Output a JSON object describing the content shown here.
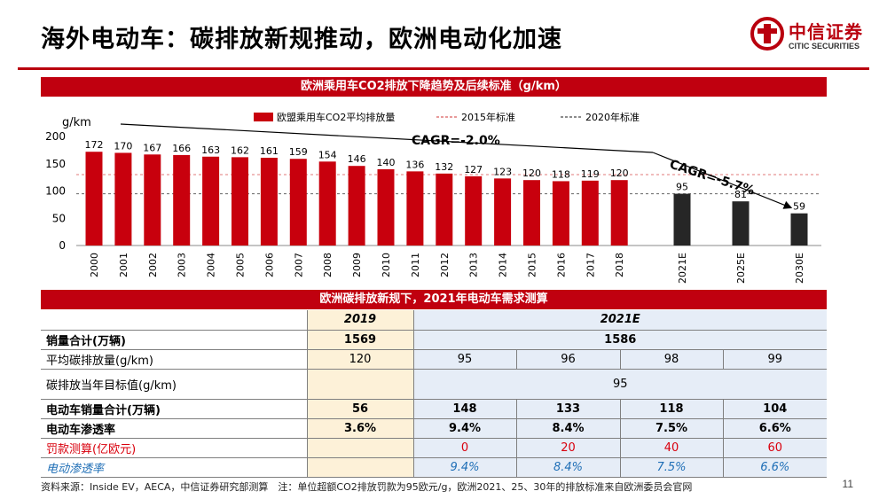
{
  "slide": {
    "title": "海外电动车：碳排放新规推动，欧洲电动化加速",
    "page_number": "11",
    "source_note": "资料来源：Inside EV，AECA，中信证券研究部测算　注：单位超额CO2排放罚款为95欧元/g，欧洲2021、25、30年的排放标准来自欧洲委员会官网"
  },
  "logo": {
    "cn": "中信证券",
    "en": "CITIC SECURITIES",
    "color": "#b9000e"
  },
  "colors": {
    "brand_red": "#c0000f",
    "bar_red": "#c8000d",
    "bar_black": "#262626",
    "highlight_2019": "#fdf1d8",
    "highlight_2021": "#e6edf7",
    "penalty_red": "#d9000d",
    "penetration_blue": "#1e6eb6"
  },
  "chart_data": {
    "type": "bar",
    "title": "欧洲乘用车CO2排放下降趋势及后续标准（g/km）",
    "ylabel": "g/km",
    "ylim": [
      0,
      200
    ],
    "yticks": [
      0,
      50,
      100,
      150,
      200
    ],
    "categories": [
      "2000",
      "2001",
      "2002",
      "2003",
      "2004",
      "2005",
      "2006",
      "2007",
      "2008",
      "2009",
      "2010",
      "2011",
      "2012",
      "2013",
      "2014",
      "2015",
      "2016",
      "2017",
      "2018",
      "2021E",
      "2025E",
      "2030E"
    ],
    "series": [
      {
        "name": "欧盟乘用车CO2平均排放量",
        "values": [
          172,
          170,
          167,
          166,
          163,
          162,
          161,
          159,
          154,
          146,
          140,
          136,
          132,
          127,
          123,
          120,
          118,
          119,
          120,
          95,
          81,
          59
        ],
        "color": "#c8000d"
      }
    ],
    "forecast_categories": [
      "2021E",
      "2025E",
      "2030E"
    ],
    "forecast_color": "#262626",
    "reference_lines": [
      {
        "name": "2015年标准",
        "value": 130,
        "color": "#e07a7a"
      },
      {
        "name": "2020年标准",
        "value": 95,
        "color": "#666666"
      }
    ],
    "annotations": [
      {
        "text": "CAGR=-2.0%",
        "from": "2000",
        "to": "2018"
      },
      {
        "text": "CAGR=-5.7%",
        "from": "2018",
        "to": "2030E"
      }
    ],
    "legend": "top"
  },
  "table": {
    "title": "欧洲碳排放新规下，2021年电动车需求测算",
    "header": {
      "label": "",
      "y2019": "2019",
      "y2021": "2021E"
    },
    "rows": {
      "sales": {
        "label": "销量合计(万辆)",
        "y2019": "1569",
        "y2021": "1586"
      },
      "avg": {
        "label": "平均碳排放量(g/km)",
        "y2019": "120",
        "v": [
          "95",
          "96",
          "98",
          "99"
        ]
      },
      "target": {
        "label": "碳排放当年目标值(g/km)",
        "y2019": "",
        "y2021": "95"
      },
      "ev_sales": {
        "label": "电动车销量合计(万辆)",
        "y2019": "56",
        "v": [
          "148",
          "133",
          "118",
          "104"
        ]
      },
      "penetration": {
        "label": "电动车渗透率",
        "y2019": "3.6%",
        "v": [
          "9.4%",
          "8.4%",
          "7.5%",
          "6.6%"
        ]
      },
      "penalty": {
        "label": "罚款测算(亿欧元)",
        "y2019": "",
        "v": [
          "0",
          "20",
          "40",
          "60"
        ]
      },
      "ev_rate": {
        "label": "电动渗透率",
        "y2019": "",
        "v": [
          "9.4%",
          "8.4%",
          "7.5%",
          "6.6%"
        ]
      }
    }
  }
}
